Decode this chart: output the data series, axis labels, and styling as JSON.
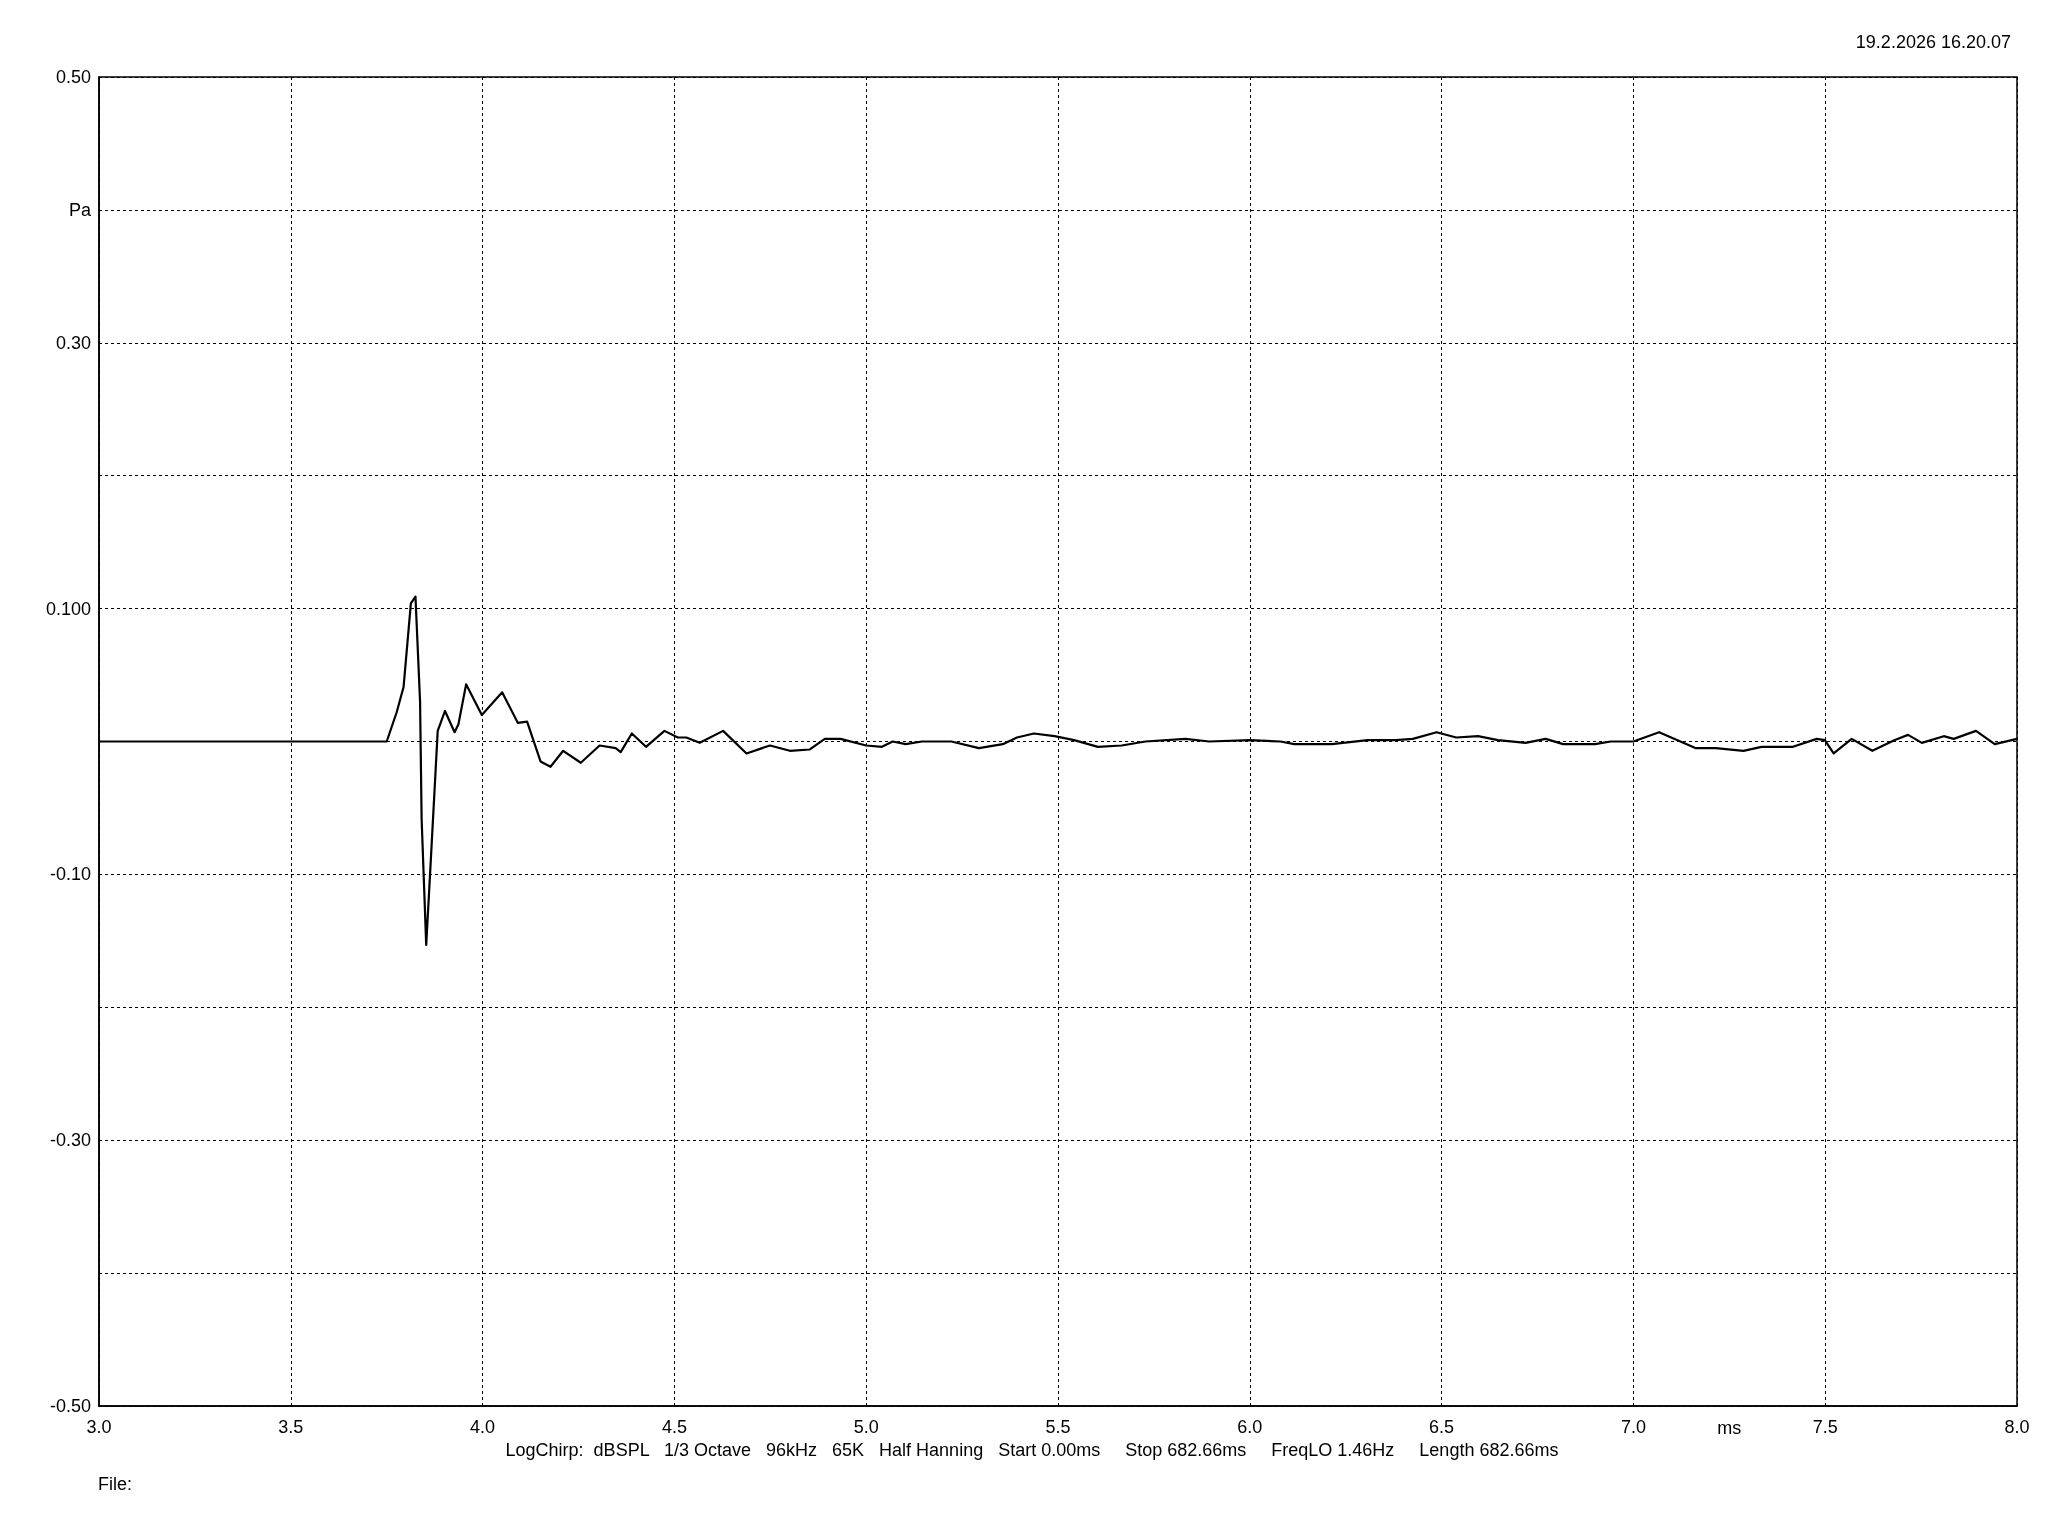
{
  "chart_data": {
    "type": "line",
    "xlabel": "ms",
    "ylabel": "Pa",
    "annotations": [
      "19.2.2026 16.20.07",
      "LogChirp:  dBSPL   1/3 Octave   96kHz   65K   Half Hanning   Start 0.00ms     Stop 682.66ms     FreqLO 1.46Hz     Length 682.66ms",
      "File:"
    ],
    "xlim": [
      3.0,
      8.0
    ],
    "xticks": [
      {
        "value": 3,
        "label": "3.0"
      },
      {
        "value": 3.5,
        "label": "3.5"
      },
      {
        "value": 4,
        "label": "4.0"
      },
      {
        "value": 4.5,
        "label": "4.5"
      },
      {
        "value": 5,
        "label": "5.0"
      },
      {
        "value": 5.5,
        "label": "5.5"
      },
      {
        "value": 6,
        "label": "6.0"
      },
      {
        "value": 6.5,
        "label": "6.5"
      },
      {
        "value": 7,
        "label": "7.0"
      },
      {
        "value": 7.5,
        "label": "7.5"
      },
      {
        "value": 8,
        "label": "8.0"
      }
    ],
    "ylim": [
      -0.5,
      0.5
    ],
    "yticks": [
      {
        "value": -0.5,
        "label": "-0.50"
      },
      {
        "value": -0.4,
        "label": null
      },
      {
        "value": -0.3,
        "label": "-0.30"
      },
      {
        "value": -0.2,
        "label": null
      },
      {
        "value": -0.1,
        "label": "-0.10"
      },
      {
        "value": 0,
        "label": null
      },
      {
        "value": 0.1,
        "label": "0.100"
      },
      {
        "value": 0.2,
        "label": null
      },
      {
        "value": 0.3,
        "label": "0.30"
      },
      {
        "value": 0.4,
        "label": null
      },
      {
        "value": 0.5,
        "label": "0.50"
      }
    ],
    "grid": true,
    "marker": "none",
    "line_style": "solid",
    "series": [
      {
        "color": "#000000",
        "x": [
          3.0,
          3.719,
          3.75,
          3.776,
          3.794,
          3.813,
          3.825,
          3.837,
          3.841,
          3.853,
          3.863,
          3.883,
          3.902,
          3.927,
          3.937,
          3.957,
          3.998,
          4.051,
          4.092,
          4.116,
          4.151,
          4.177,
          4.21,
          4.256,
          4.305,
          4.347,
          4.36,
          4.389,
          4.426,
          4.474,
          4.509,
          4.531,
          4.566,
          4.627,
          4.688,
          4.749,
          4.801,
          4.853,
          4.892,
          4.933,
          5.0,
          5.041,
          5.069,
          5.103,
          5.145,
          5.222,
          5.294,
          5.356,
          5.393,
          5.437,
          5.491,
          5.542,
          5.604,
          5.666,
          5.728,
          5.832,
          5.894,
          6.0,
          6.08,
          6.116,
          6.214,
          6.307,
          6.38,
          6.425,
          6.487,
          6.538,
          6.595,
          6.647,
          6.719,
          6.771,
          6.817,
          6.9,
          6.941,
          7.0,
          7.067,
          7.163,
          7.215,
          7.287,
          7.334,
          7.416,
          7.478,
          7.499,
          7.522,
          7.569,
          7.623,
          7.68,
          7.716,
          7.752,
          7.809,
          7.835,
          7.893,
          7.942,
          8.0
        ],
        "values": [
          0,
          0,
          0,
          0.022,
          0.041,
          0.104,
          0.109,
          0.03,
          -0.058,
          -0.153,
          -0.1,
          0.008,
          0.023,
          0.007,
          0.013,
          0.043,
          0.02,
          0.037,
          0.014,
          0.015,
          -0.015,
          -0.019,
          -0.007,
          -0.016,
          -0.003,
          -0.005,
          -0.008,
          0.006,
          -0.004,
          0.008,
          0.003,
          0.003,
          -0.001,
          0.008,
          -0.009,
          -0.003,
          -0.007,
          -0.006,
          0.002,
          0.002,
          -0.003,
          -0.004,
          0,
          -0.002,
          0,
          0,
          -0.005,
          -0.002,
          0.003,
          0.006,
          0.004,
          0.001,
          -0.004,
          -0.003,
          0,
          0.002,
          0,
          0.001,
          0,
          -0.002,
          -0.002,
          0.001,
          0.001,
          0.002,
          0.007,
          0.003,
          0.004,
          0.001,
          -0.001,
          0.002,
          -0.002,
          -0.002,
          0,
          0,
          0.007,
          -0.005,
          -0.005,
          -0.007,
          -0.004,
          -0.004,
          0.002,
          0.001,
          -0.009,
          0.002,
          -0.007,
          0.001,
          0.005,
          -0.001,
          0.004,
          0.002,
          0.008,
          -0.002,
          0.002
        ]
      }
    ]
  }
}
